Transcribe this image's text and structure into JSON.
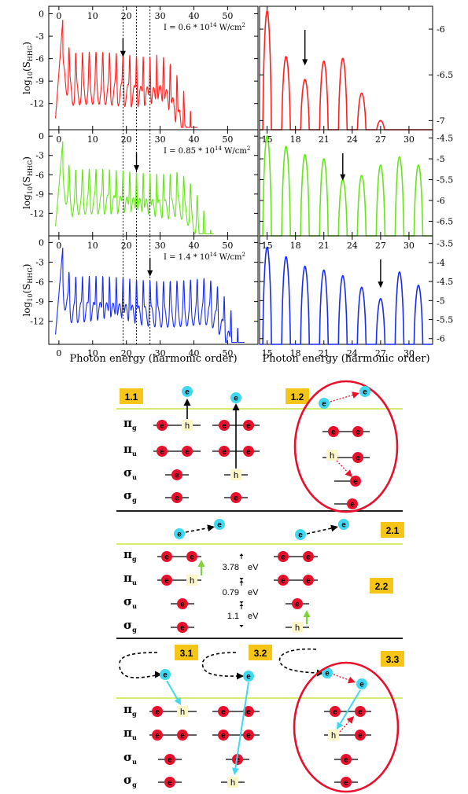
{
  "chart_data": [
    {
      "type": "line",
      "panel": "left",
      "xlabel": "Photon energy (harmonic order)",
      "ylabel_main": "log",
      "ylabel_sub": "10",
      "ylabel_paren": "(S",
      "ylabel_subsub": "HHG",
      "ylabel_close": ")",
      "xlim": [
        -3,
        59
      ],
      "ylim": [
        -15.5,
        1
      ],
      "x_ticks": [
        0,
        10,
        20,
        30,
        40,
        50
      ],
      "y_ticks": [
        0,
        -3,
        -6,
        -9,
        -12
      ],
      "x_tick_labels": [
        "0",
        "10",
        "20",
        "30",
        "40",
        "50"
      ],
      "y_tick_labels": [
        "0",
        "-3",
        "-6",
        "-9",
        "-12"
      ],
      "reference_lines_x": [
        19,
        23,
        27
      ],
      "series": [
        {
          "intensity": "I = 0.6 * 10",
          "exp": "14",
          "unit": " W/cm",
          "unitexp": "2",
          "color": "#ff2020",
          "cutoff": 39,
          "arrow_x": 19,
          "arrow_y": -5.8
        },
        {
          "intensity": "I = 0.85 * 10",
          "exp": "14",
          "unit": " W/cm",
          "unitexp": "2",
          "color": "#66e61a",
          "cutoff": 44,
          "arrow_x": 23,
          "arrow_y": -5.5
        },
        {
          "intensity": "I = 1.4 * 10",
          "exp": "14",
          "unit": " W/cm",
          "unitexp": "2",
          "color": "#1a2cf0",
          "cutoff": 53,
          "arrow_x": 27,
          "arrow_y": -5.2
        }
      ]
    },
    {
      "type": "line",
      "panel": "right",
      "xlabel": "Photon energy (harmonic order)",
      "xlim": [
        14.2,
        32.5
      ],
      "x_ticks": [
        15,
        18,
        21,
        24,
        27,
        30
      ],
      "x_tick_labels": [
        "15",
        "18",
        "21",
        "24",
        "27",
        "30"
      ],
      "harmonics": [
        15,
        17,
        19,
        21,
        23,
        25,
        27,
        29,
        31
      ],
      "series": [
        {
          "color": "#ff2020",
          "ylim": [
            -7.1,
            -5.75
          ],
          "y_ticks": [
            -6,
            -6.5,
            -7
          ],
          "y_tick_labels": [
            "-6",
            "-6.5",
            "-7"
          ],
          "peaks": [
            -5.8,
            -6.3,
            -6.55,
            -6.35,
            -6.32,
            -6.7,
            -7.0,
            null,
            null
          ],
          "arrow_x": 19
        },
        {
          "color": "#66e61a",
          "ylim": [
            -6.85,
            -4.3
          ],
          "y_ticks": [
            -4.5,
            -5,
            -5.5,
            -6,
            -6.5
          ],
          "y_tick_labels": [
            "-4.5",
            "-5",
            "-5.5",
            "-6",
            "-6.5"
          ],
          "peaks": [
            -4.45,
            -4.7,
            -4.9,
            -5.0,
            -5.5,
            -5.4,
            -5.15,
            -4.95,
            -5.15
          ],
          "arrow_x": 23
        },
        {
          "color": "#1a2cf0",
          "ylim": [
            -6.15,
            -3.3
          ],
          "y_ticks": [
            -3.5,
            -4,
            -4.5,
            -5,
            -5.5,
            -6
          ],
          "y_tick_labels": [
            "-3.5",
            "-4",
            "-4.5",
            "-5",
            "-5.5",
            "-6"
          ],
          "peaks": [
            -3.6,
            -3.85,
            -4.1,
            -4.2,
            -4.35,
            -4.65,
            -4.95,
            -4.25,
            -4.6
          ],
          "arrow_x": 27
        }
      ]
    }
  ],
  "diagram": {
    "section1": {
      "badges": [
        "1.1",
        "1.2"
      ]
    },
    "section2": {
      "badges": [
        "2.1",
        "2.2"
      ],
      "gaps": [
        "3.78",
        "0.79",
        "1.1"
      ],
      "unit": "eV"
    },
    "section3": {
      "badges": [
        "3.1",
        "3.2",
        "3.3"
      ]
    },
    "orbitals": {
      "pi_g": {
        "sym": "π",
        "sub": "g"
      },
      "pi_u": {
        "sym": "π",
        "sub": "u"
      },
      "sigma_u": {
        "sym": "σ",
        "sub": "u"
      },
      "sigma_g": {
        "sym": "σ",
        "sub": "g"
      }
    },
    "electron": "e",
    "hole": "h",
    "colors": {
      "electron": "#e8102a",
      "free_electron": "#3fd8f0",
      "badge": "#f5c518",
      "level_line": "#c8e640",
      "arrow_green": "#7fd33a",
      "arrow_cyan": "#3fd8f0",
      "circle": "#e8102a"
    }
  }
}
